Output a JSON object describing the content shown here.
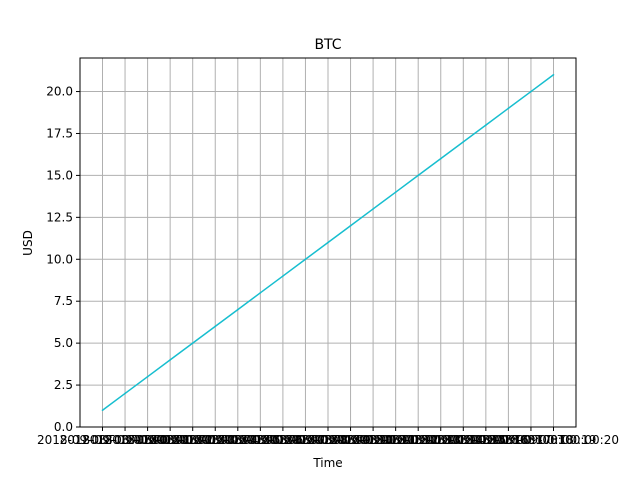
{
  "chart_data": {
    "type": "line",
    "title": "BTC",
    "xlabel": "Time",
    "ylabel": "USD",
    "x": [
      "2018-09-08T00:00:00",
      "2018-09-08T00:00:01",
      "2018-09-08T00:00:02",
      "2018-09-08T00:00:03",
      "2018-09-08T00:00:04",
      "2018-09-08T00:00:05",
      "2018-09-08T00:00:06",
      "2018-09-08T00:00:07",
      "2018-09-08T00:00:08",
      "2018-09-08T00:00:09",
      "2018-09-08T00:00:10",
      "2018-09-08T00:00:11",
      "2018-09-08T00:00:12",
      "2018-09-08T00:00:13",
      "2018-09-08T00:00:14",
      "2018-09-08T00:00:15",
      "2018-09-08T00:00:16",
      "2018-09-08T00:00:17",
      "2018-09-08T00:00:18",
      "2018-09-08T00:00:19",
      "2018-09-08T00:00:20"
    ],
    "series": [
      {
        "values": [
          1,
          2,
          3,
          4,
          5,
          6,
          7,
          8,
          9,
          10,
          11,
          12,
          13,
          14,
          15,
          16,
          17,
          18,
          19,
          20,
          21
        ],
        "color": "#17becf"
      }
    ],
    "ylim": [
      0,
      22
    ],
    "y_ticks": [
      "0.0",
      "2.5",
      "5.0",
      "7.5",
      "10.0",
      "12.5",
      "15.0",
      "17.5",
      "20.0"
    ],
    "grid": true,
    "colors": {
      "line": "#17becf",
      "grid": "#b0b0b0",
      "axes": "#000000"
    }
  }
}
